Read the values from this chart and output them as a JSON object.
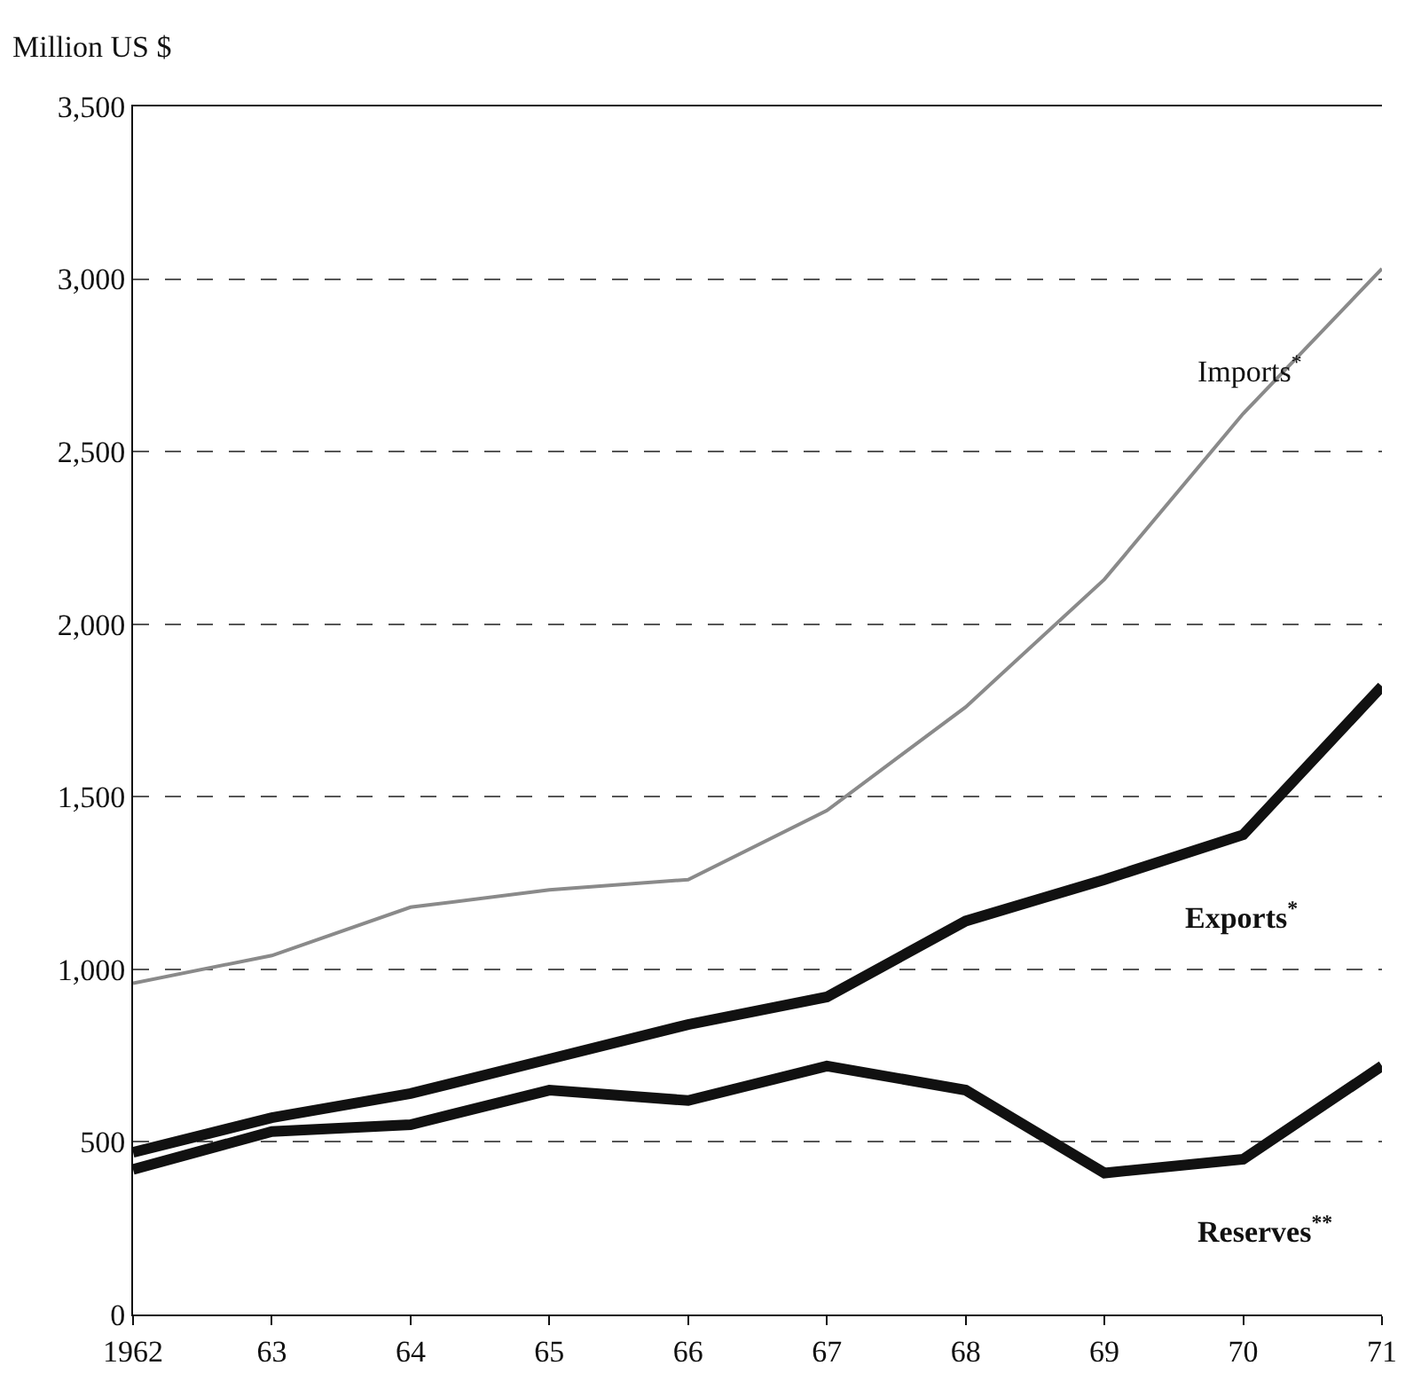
{
  "chart_data": {
    "type": "line",
    "ylabel": "Million US $",
    "x": [
      1962,
      1963,
      1964,
      1965,
      1966,
      1967,
      1968,
      1969,
      1970,
      1971
    ],
    "xlim": [
      1962,
      1971
    ],
    "xticks": [
      1962,
      {
        "value": 1963,
        "label": "63"
      },
      {
        "value": 1964,
        "label": "64"
      },
      {
        "value": 1965,
        "label": "65"
      },
      {
        "value": 1966,
        "label": "66"
      },
      {
        "value": 1967,
        "label": "67"
      },
      {
        "value": 1968,
        "label": "68"
      },
      {
        "value": 1969,
        "label": "69"
      },
      {
        "value": 1970,
        "label": "70"
      },
      {
        "value": 1971,
        "label": "71"
      }
    ],
    "ylim": [
      0,
      3500
    ],
    "yticks": [
      {
        "value": 0,
        "label": "0"
      },
      {
        "value": 500,
        "label": "500"
      },
      {
        "value": 1000,
        "label": "1,000"
      },
      {
        "value": 1500,
        "label": "1,500"
      },
      {
        "value": 2000,
        "label": "2,000"
      },
      {
        "value": 2500,
        "label": "2,500"
      },
      {
        "value": 3000,
        "label": "3,000"
      },
      {
        "value": 3500,
        "label": "3,500"
      }
    ],
    "grid": "y",
    "legend": false,
    "marker": "none",
    "series": [
      {
        "name": "Imports$^{*}$",
        "color": "#8a8a8a",
        "values": [
          960,
          1040,
          1180,
          1230,
          1260,
          1460,
          1760,
          2130,
          2610,
          3030
        ]
      },
      {
        "name": "Exports$^{*}$",
        "color": "#111111",
        "values": [
          470,
          570,
          640,
          740,
          840,
          920,
          1140,
          1260,
          1390,
          1820
        ]
      },
      {
        "name": "Reserves$^{**}$",
        "color": "#111111",
        "values": [
          420,
          530,
          550,
          650,
          620,
          720,
          650,
          410,
          450,
          720
        ]
      }
    ]
  }
}
